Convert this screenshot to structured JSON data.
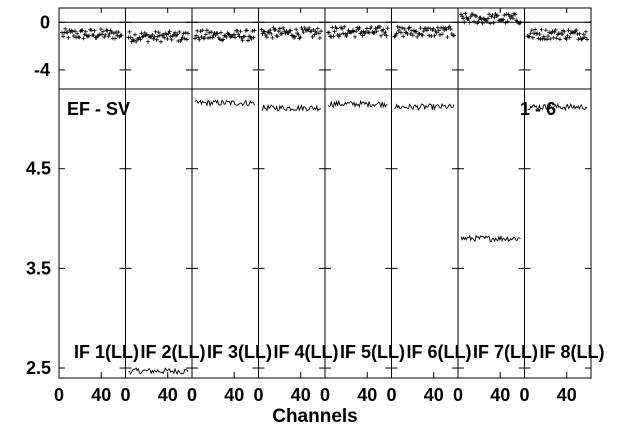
{
  "chart_data": {
    "type": "line",
    "title_left": "EF - SV",
    "title_right": "1 - 6",
    "xlabel": "Channels",
    "x_ticks": [
      0,
      40
    ],
    "x_range": [
      0,
      63
    ],
    "phase_panel": {
      "y_ticks": [
        0,
        -4
      ],
      "y_range": [
        -5.6,
        1.2
      ],
      "zero_line": true
    },
    "amp_panel": {
      "y_ticks": [
        2.5,
        3.5,
        4.5
      ],
      "y_range": [
        2.4,
        5.3
      ]
    },
    "panels": [
      {
        "label": "IF 1(LL)",
        "phase": -1.0,
        "amp": null
      },
      {
        "label": "IF 2(LL)",
        "phase": -1.2,
        "amp": 2.47
      },
      {
        "label": "IF 3(LL)",
        "phase": -1.1,
        "amp": 5.16
      },
      {
        "label": "IF 4(LL)",
        "phase": -0.9,
        "amp": 5.11
      },
      {
        "label": "IF 5(LL)",
        "phase": -0.8,
        "amp": 5.15
      },
      {
        "label": "IF 6(LL)",
        "phase": -0.8,
        "amp": 5.12
      },
      {
        "label": "IF 7(LL)",
        "phase": 0.3,
        "amp": 3.8
      },
      {
        "label": "IF 8(LL)",
        "phase": -1.0,
        "amp": 5.12
      }
    ]
  }
}
